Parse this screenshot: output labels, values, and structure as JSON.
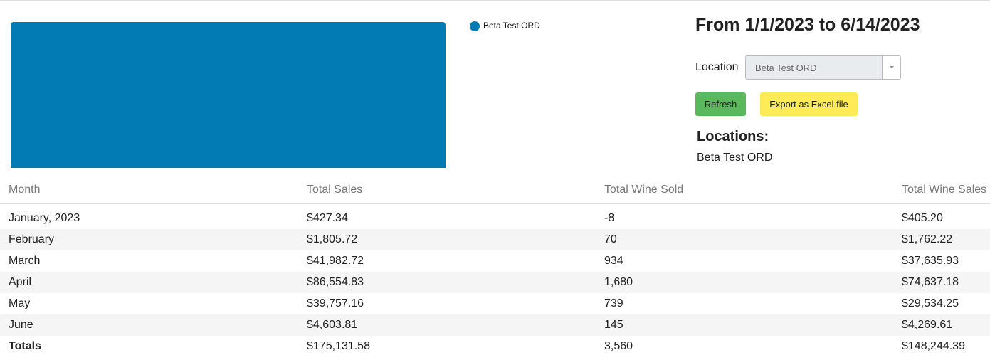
{
  "header": {
    "title": "From 1/1/2023 to 6/14/2023"
  },
  "legend": {
    "label": "Beta Test ORD",
    "color": "#027bb4"
  },
  "filter": {
    "label": "Location",
    "value": "Beta Test ORD"
  },
  "buttons": [
    "Refresh",
    "Export as Excel file"
  ],
  "locations": {
    "title": "Locations:",
    "items": [
      "Beta Test ORD"
    ]
  },
  "table": {
    "columns": [
      "Month",
      "Total Sales",
      "Total Wine Sold",
      "Total Wine Sales"
    ],
    "rows": [
      [
        "January, 2023",
        "$427.34",
        "-8",
        "$405.20"
      ],
      [
        "February",
        "$1,805.72",
        "70",
        "$1,762.22"
      ],
      [
        "March",
        "$41,982.72",
        "934",
        "$37,635.93"
      ],
      [
        "April",
        "$86,554.83",
        "1,680",
        "$74,637.18"
      ],
      [
        "May",
        "$39,757.16",
        "739",
        "$29,534.25"
      ],
      [
        "June",
        "$4,603.81",
        "145",
        "$4,269.61"
      ]
    ],
    "totals": [
      "Totals",
      "$175,131.58",
      "3,560",
      "$148,244.39"
    ]
  }
}
